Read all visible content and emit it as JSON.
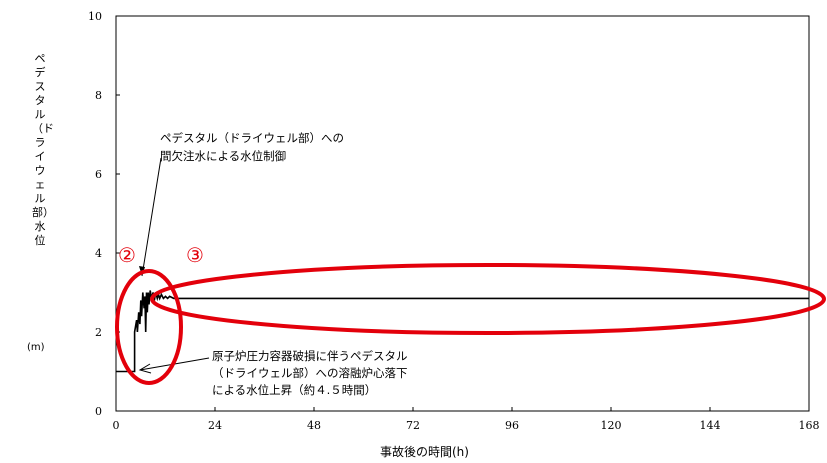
{
  "chart_data": {
    "type": "line",
    "xlabel": "事故後の時間(h)",
    "ylabel": "ペデスタル（ドライウェル部）水位",
    "yunit": "(m)",
    "xlim": [
      0,
      168
    ],
    "ylim": [
      0,
      10
    ],
    "xticks": [
      "0",
      "24",
      "48",
      "72",
      "96",
      "120",
      "144",
      "168"
    ],
    "yticks": [
      "0",
      "2",
      "4",
      "6",
      "8",
      "10"
    ],
    "grid": false,
    "series": [
      {
        "x": [
          0,
          4.5,
          4.5,
          5.0,
          5.2,
          5.5,
          5.8,
          6.0,
          6.2,
          6.5,
          6.8,
          7.0,
          7.2,
          7.4,
          7.6,
          7.8,
          8.0,
          8.3,
          8.6,
          9.0,
          9.3,
          9.6,
          10.0,
          10.3,
          10.6,
          11.0,
          11.5,
          12.0,
          12.5,
          13.0,
          14.0,
          168
        ],
        "y": [
          1.0,
          1.0,
          2.0,
          2.3,
          2.0,
          2.5,
          2.2,
          2.8,
          2.4,
          3.0,
          2.6,
          2.9,
          2.0,
          3.0,
          2.5,
          3.0,
          2.7,
          3.05,
          2.85,
          3.0,
          2.8,
          3.0,
          2.85,
          2.95,
          2.85,
          2.95,
          2.85,
          2.9,
          2.85,
          2.9,
          2.85,
          2.85
        ]
      }
    ],
    "annotations": {
      "top_line1": "ペデスタル（ドライウェル部）への",
      "top_line2": "間欠注水による水位制御",
      "bottom_line1": "原子炉圧力容器破損に伴うペデスタル",
      "bottom_line2": "（ドライウェル部）への溶融炉心落下",
      "bottom_line3": "による水位上昇（約４.５時間）",
      "marker2": "②",
      "marker3": "③"
    },
    "colors": {
      "line": "#000000",
      "highlight": "#e3000b"
    }
  }
}
